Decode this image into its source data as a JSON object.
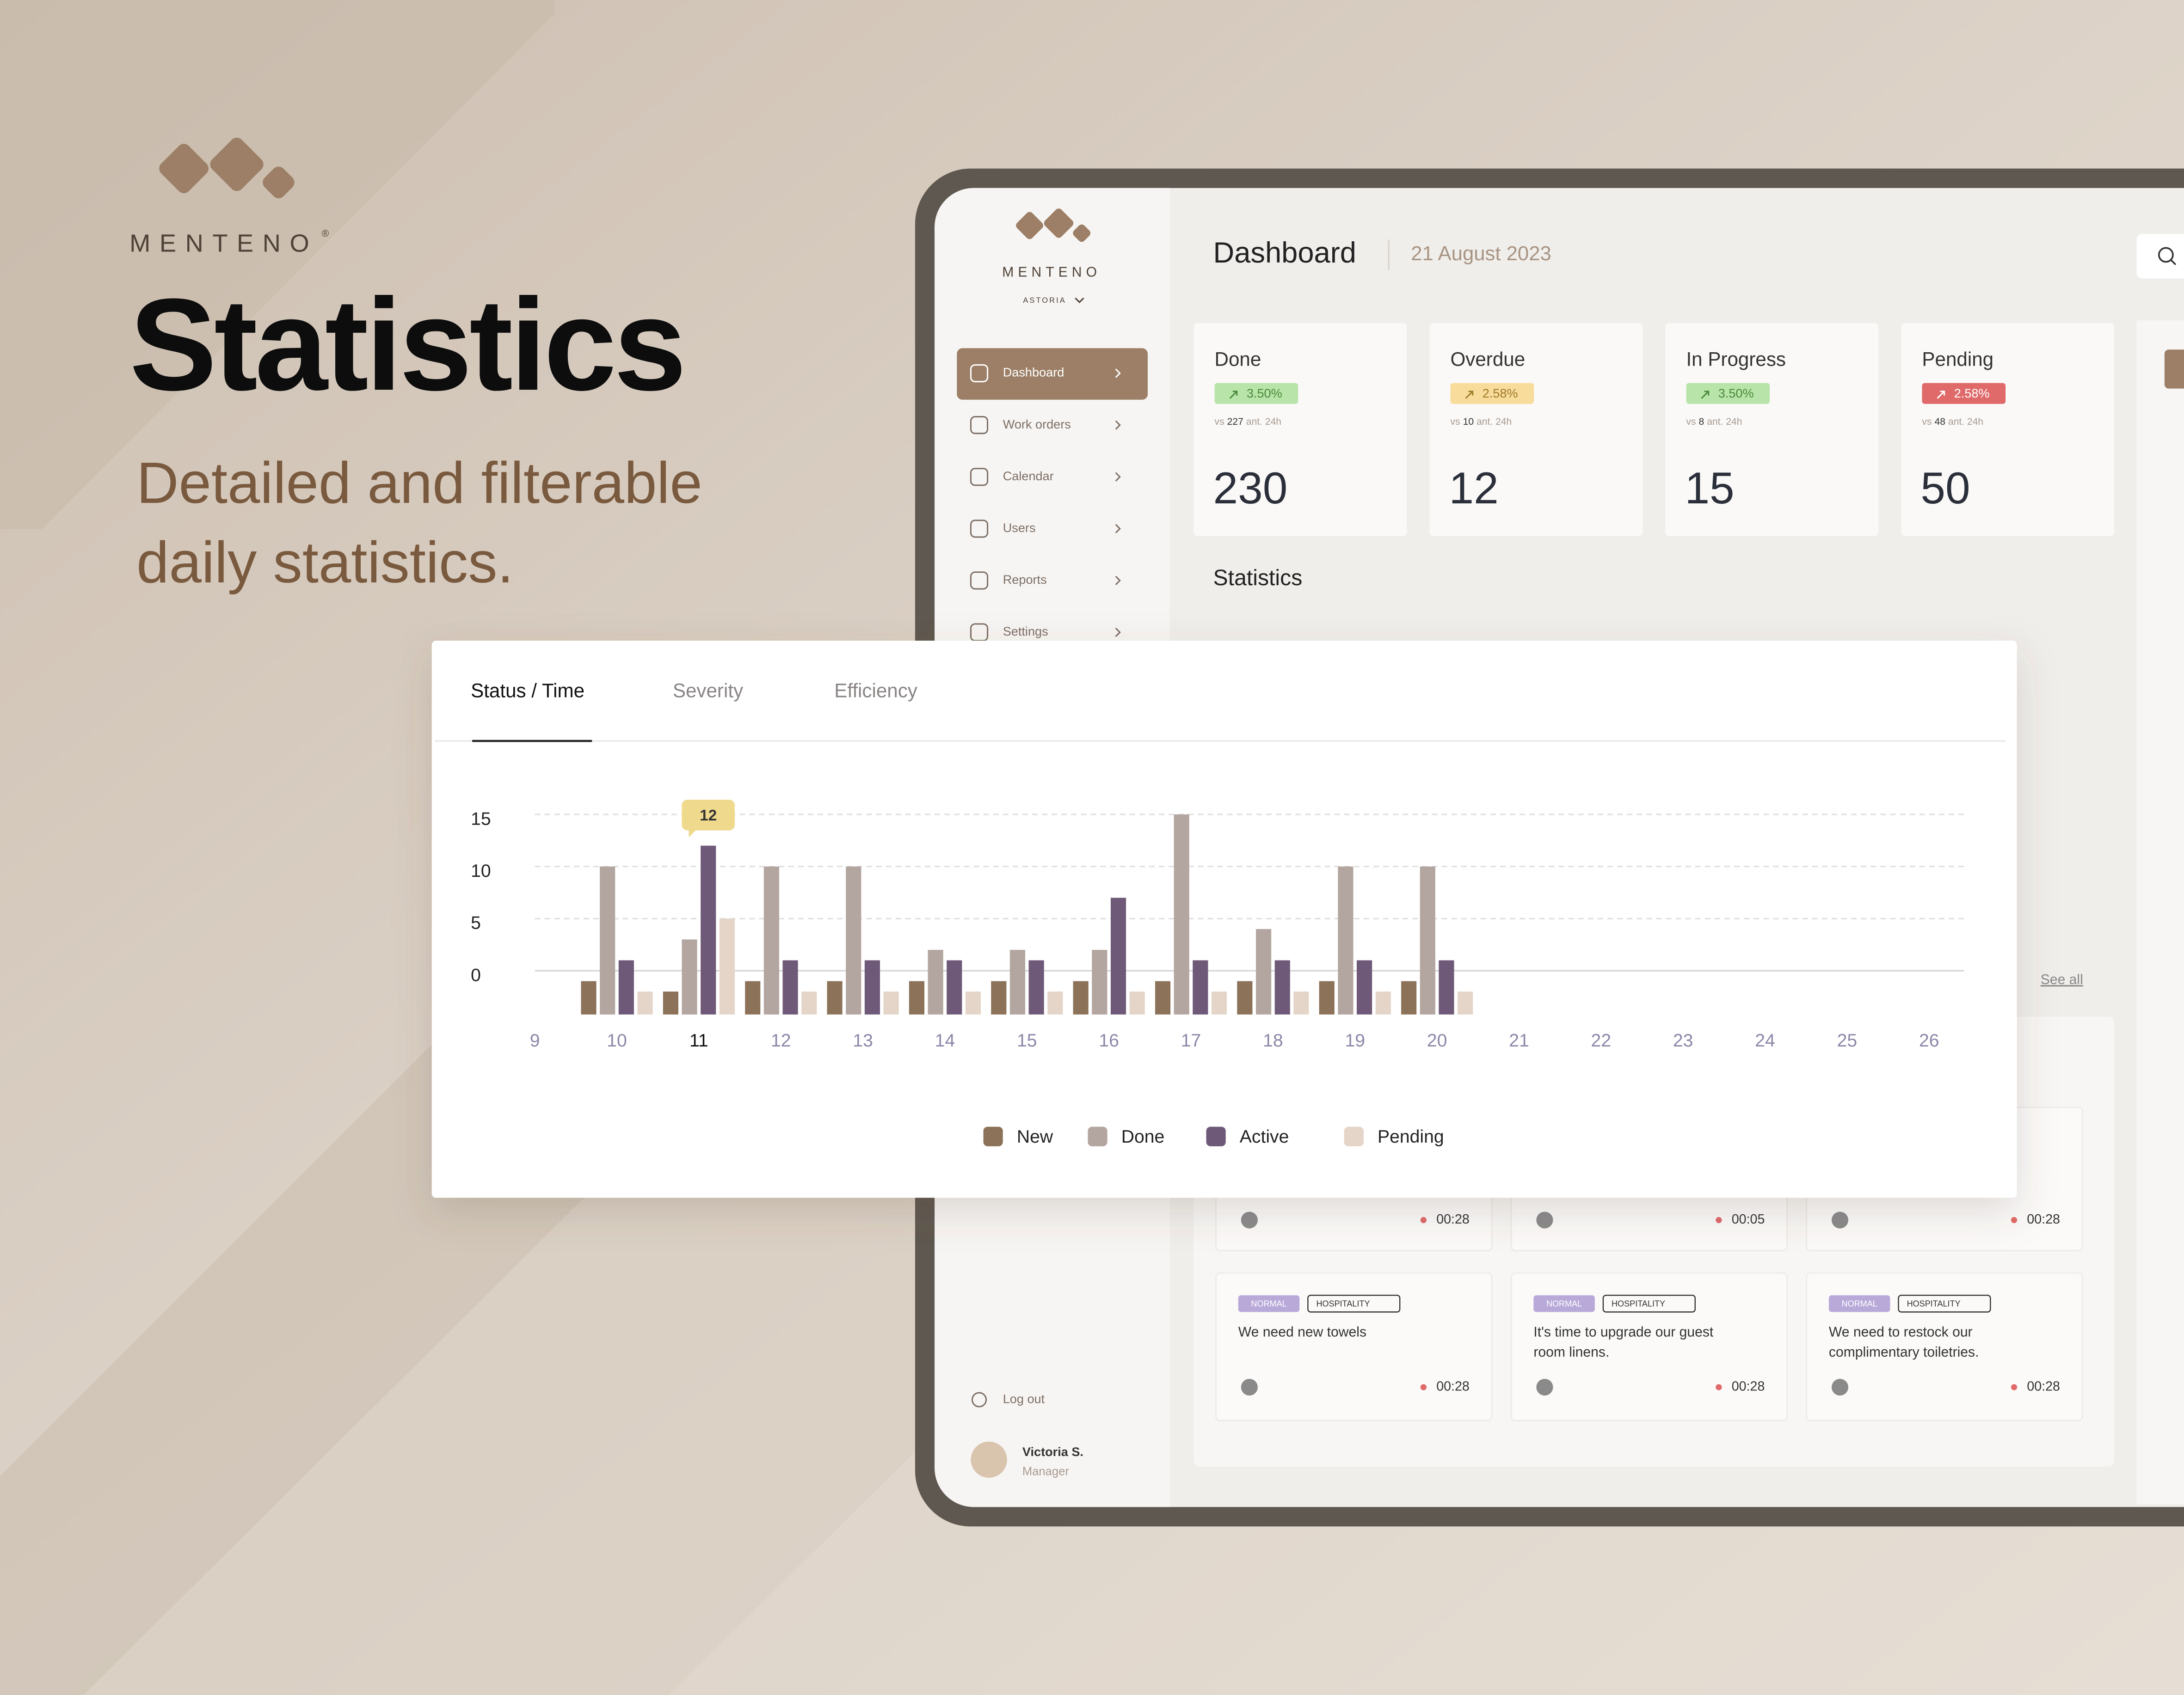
{
  "brand": {
    "name": "MENTENO",
    "registered": "®"
  },
  "hero": {
    "title": "Statistics",
    "subtitle_lines": [
      "Detailed and filterable",
      "daily statistics."
    ]
  },
  "app": {
    "brand": "MENTENO",
    "location": "ASTORIA",
    "nav": [
      "Dashboard",
      "Work orders",
      "Calendar",
      "Users",
      "Reports",
      "Settings"
    ],
    "logout": "Log out",
    "user": {
      "name": "Victoria S.",
      "role": "Manager"
    }
  },
  "header": {
    "title": "Dashboard",
    "date": "21 August 2023"
  },
  "kpis": [
    {
      "label": "Done",
      "change": "3.50%",
      "color": "#b9e4a9",
      "text_color": "#4a8a3c",
      "compare_prefix": "vs",
      "compare_value": 227,
      "compare_suffix": "ant. 24h",
      "value": 230
    },
    {
      "label": "Overdue",
      "change": "2.58%",
      "color": "#f8dc9c",
      "text_color": "#a07c2a",
      "compare_prefix": "vs",
      "compare_value": 10,
      "compare_suffix": "ant. 24h",
      "value": 12
    },
    {
      "label": "In Progress",
      "change": "3.50%",
      "color": "#b9e4a9",
      "text_color": "#4a8a3c",
      "compare_prefix": "vs",
      "compare_value": 8,
      "compare_suffix": "ant. 24h",
      "value": 15
    },
    {
      "label": "Pending",
      "change": "2.58%",
      "color": "#e06a6a",
      "text_color": "#ffffff",
      "compare_prefix": "vs",
      "compare_value": 48,
      "compare_suffix": "ant. 24h",
      "value": 50
    }
  ],
  "section_title": "Statistics",
  "see_all": "See all",
  "tasks": [
    {
      "time": "00:28"
    },
    {
      "time": "00:05"
    },
    {
      "time": "00:28"
    },
    {
      "priority": "NORMAL",
      "category": "HOSPITALITY",
      "lines": [
        "We need new towels"
      ],
      "time": "00:28"
    },
    {
      "priority": "NORMAL",
      "category": "HOSPITALITY",
      "lines": [
        "It's time to upgrade our guest",
        "room linens."
      ],
      "time": "00:28"
    },
    {
      "priority": "NORMAL",
      "category": "HOSPITALITY",
      "lines": [
        "We need to restock our",
        "complimentary toiletries."
      ],
      "time": "00:28"
    }
  ],
  "chart": {
    "type": "bar",
    "tabs": [
      "Status / Time",
      "Severity",
      "Efficiency"
    ],
    "categories": [
      "9",
      "10",
      "11",
      "12",
      "13",
      "14",
      "15",
      "16",
      "17",
      "18",
      "19",
      "20",
      "21",
      "22",
      "23",
      "24",
      "25",
      "26"
    ],
    "series": [
      {
        "name": "New",
        "color": "#8b7259",
        "values": [
          null,
          -1,
          -2,
          -1,
          -1,
          -1,
          -1,
          -1,
          -1,
          -1,
          -1,
          -1,
          null,
          null,
          null,
          null,
          null,
          null
        ]
      },
      {
        "name": "Done",
        "color": "#b3a59f",
        "values": [
          null,
          10,
          3,
          10,
          10,
          2,
          2,
          2,
          15,
          4,
          10,
          10,
          null,
          null,
          null,
          null,
          null,
          null
        ]
      },
      {
        "name": "Active",
        "color": "#6e5a78",
        "values": [
          null,
          1,
          12,
          1,
          1,
          1,
          1,
          7,
          1,
          1,
          1,
          1,
          null,
          null,
          null,
          null,
          null,
          null
        ]
      },
      {
        "name": "Pending",
        "color": "#e4d5c8",
        "values": [
          null,
          -2,
          5,
          -2,
          -2,
          -2,
          -2,
          -2,
          -2,
          -2,
          -2,
          -2,
          null,
          null,
          null,
          null,
          null,
          null
        ]
      }
    ],
    "ylim": [
      -4.2,
      15.5
    ],
    "yticks": [
      0,
      5,
      10,
      15
    ],
    "grid": true
  }
}
